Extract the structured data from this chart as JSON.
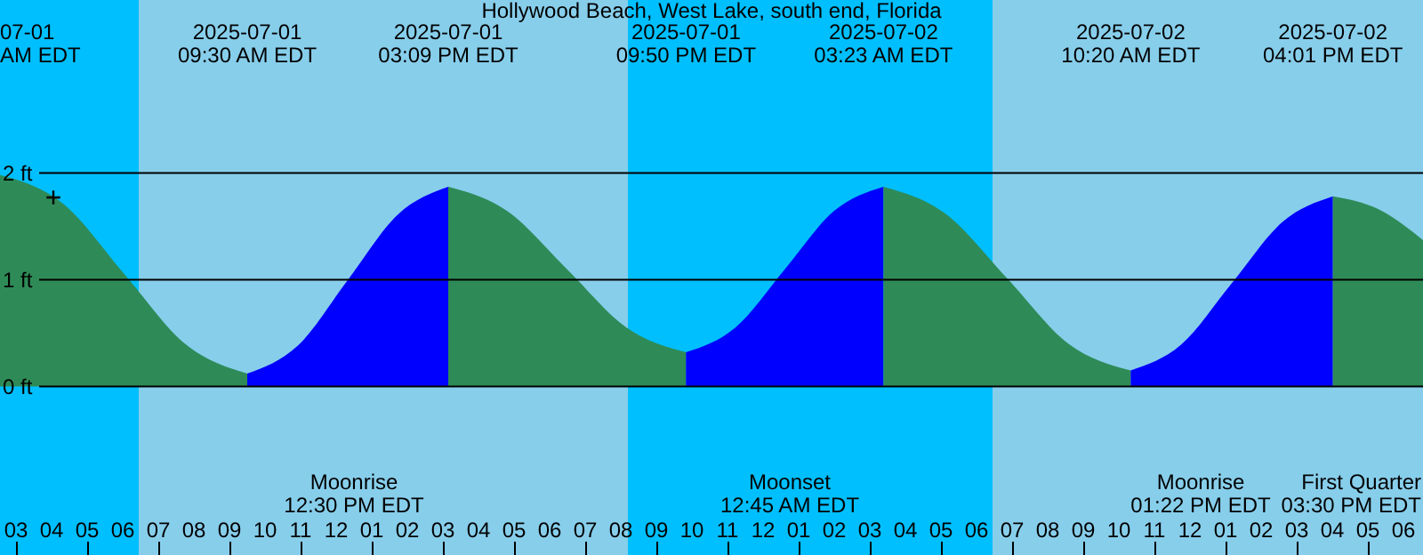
{
  "chart_data": {
    "type": "area",
    "title": "Hollywood Beach, West Lake, south end, Florida",
    "xlim": [
      "2025-07-01T02:33",
      "2025-07-02T18:33"
    ],
    "ylim": [
      -1.58,
      3.62
    ],
    "yticks": [
      {
        "value": 0,
        "label": "0 ft"
      },
      {
        "value": 1,
        "label": "1 ft"
      },
      {
        "value": 2,
        "label": "2 ft"
      }
    ],
    "xticks": [
      {
        "value": "2025-07-01T03:00",
        "label": "03"
      },
      {
        "value": "2025-07-01T04:00",
        "label": "04"
      },
      {
        "value": "2025-07-01T05:00",
        "label": "05"
      },
      {
        "value": "2025-07-01T06:00",
        "label": "06"
      },
      {
        "value": "2025-07-01T07:00",
        "label": "07"
      },
      {
        "value": "2025-07-01T08:00",
        "label": "08"
      },
      {
        "value": "2025-07-01T09:00",
        "label": "09"
      },
      {
        "value": "2025-07-01T10:00",
        "label": "10"
      },
      {
        "value": "2025-07-01T11:00",
        "label": "11"
      },
      {
        "value": "2025-07-01T12:00",
        "label": "12"
      },
      {
        "value": "2025-07-01T13:00",
        "label": "01"
      },
      {
        "value": "2025-07-01T14:00",
        "label": "02"
      },
      {
        "value": "2025-07-01T15:00",
        "label": "03"
      },
      {
        "value": "2025-07-01T16:00",
        "label": "04"
      },
      {
        "value": "2025-07-01T17:00",
        "label": "05"
      },
      {
        "value": "2025-07-01T18:00",
        "label": "06"
      },
      {
        "value": "2025-07-01T19:00",
        "label": "07"
      },
      {
        "value": "2025-07-01T20:00",
        "label": "08"
      },
      {
        "value": "2025-07-01T21:00",
        "label": "09"
      },
      {
        "value": "2025-07-01T22:00",
        "label": "10"
      },
      {
        "value": "2025-07-01T23:00",
        "label": "11"
      },
      {
        "value": "2025-07-02T00:00",
        "label": "12"
      },
      {
        "value": "2025-07-02T01:00",
        "label": "01"
      },
      {
        "value": "2025-07-02T02:00",
        "label": "02"
      },
      {
        "value": "2025-07-02T03:00",
        "label": "03"
      },
      {
        "value": "2025-07-02T04:00",
        "label": "04"
      },
      {
        "value": "2025-07-02T05:00",
        "label": "05"
      },
      {
        "value": "2025-07-02T06:00",
        "label": "06"
      },
      {
        "value": "2025-07-02T07:00",
        "label": "07"
      },
      {
        "value": "2025-07-02T08:00",
        "label": "08"
      },
      {
        "value": "2025-07-02T09:00",
        "label": "09"
      },
      {
        "value": "2025-07-02T10:00",
        "label": "10"
      },
      {
        "value": "2025-07-02T11:00",
        "label": "11"
      },
      {
        "value": "2025-07-02T12:00",
        "label": "12"
      },
      {
        "value": "2025-07-02T13:00",
        "label": "01"
      },
      {
        "value": "2025-07-02T14:00",
        "label": "02"
      },
      {
        "value": "2025-07-02T15:00",
        "label": "03"
      },
      {
        "value": "2025-07-02T16:00",
        "label": "04"
      },
      {
        "value": "2025-07-02T17:00",
        "label": "05"
      },
      {
        "value": "2025-07-02T18:00",
        "label": "06"
      }
    ],
    "grid": "y",
    "bands": [
      {
        "axis": "x",
        "from": "2025-07-01T02:33",
        "to": "2025-07-01T06:27",
        "color": "#00bfff"
      },
      {
        "axis": "x",
        "from": "2025-07-01T06:27",
        "to": "2025-07-01T20:12",
        "color": "#87ceeb"
      },
      {
        "axis": "x",
        "from": "2025-07-01T20:12",
        "to": "2025-07-02T06:27",
        "color": "#00bfff"
      },
      {
        "axis": "x",
        "from": "2025-07-02T06:27",
        "to": "2025-07-02T18:33",
        "color": "#87ceeb"
      }
    ],
    "series": [
      {
        "color": "#2e8b57",
        "x": [
          "2025-07-01T02:33",
          "2025-07-01T04:20",
          "2025-07-01T06:03",
          "2025-07-01T07:47",
          "2025-07-01T09:30"
        ],
        "values": [
          1.98,
          1.71,
          1.05,
          0.39,
          0.12
        ]
      },
      {
        "color": "#0000ff",
        "x": [
          "2025-07-01T09:30",
          "2025-07-01T10:55",
          "2025-07-01T12:20",
          "2025-07-01T13:44",
          "2025-07-01T15:09"
        ],
        "values": [
          0.12,
          0.38,
          1.0,
          1.61,
          1.87
        ]
      },
      {
        "color": "#2e8b57",
        "x": [
          "2025-07-01T15:09",
          "2025-07-01T16:49",
          "2025-07-01T18:29",
          "2025-07-01T20:10",
          "2025-07-01T21:50"
        ],
        "values": [
          1.87,
          1.64,
          1.1,
          0.55,
          0.32
        ]
      },
      {
        "color": "#0000ff",
        "x": [
          "2025-07-01T21:50",
          "2025-07-01T23:13",
          "2025-07-02T00:37",
          "2025-07-02T01:59",
          "2025-07-02T03:23"
        ],
        "values": [
          0.32,
          0.55,
          1.1,
          1.64,
          1.87
        ]
      },
      {
        "color": "#2e8b57",
        "x": [
          "2025-07-02T03:23",
          "2025-07-02T05:07",
          "2025-07-02T06:52",
          "2025-07-02T08:35",
          "2025-07-02T10:20"
        ],
        "values": [
          1.87,
          1.62,
          1.01,
          0.4,
          0.15
        ]
      },
      {
        "color": "#0000ff",
        "x": [
          "2025-07-02T10:20",
          "2025-07-02T11:45",
          "2025-07-02T13:11",
          "2025-07-02T14:36",
          "2025-07-02T16:01"
        ],
        "values": [
          0.15,
          0.39,
          0.97,
          1.54,
          1.78
        ]
      },
      {
        "color": "#2e8b57",
        "x": [
          "2025-07-02T16:01",
          "2025-07-02T17:18",
          "2025-07-02T18:33"
        ],
        "values": [
          1.78,
          1.66,
          1.37
        ]
      },
      {
        "type": "scatter",
        "marker": "cross",
        "color": "#000000",
        "x": [
          "2025-07-01T04:03"
        ],
        "values": [
          1.77
        ]
      }
    ],
    "annotations": [
      "07-01\nAM EDT",
      "2025-07-01\n09:30 AM EDT",
      "2025-07-01\n03:09 PM EDT",
      "2025-07-01\n09:50 PM EDT",
      "2025-07-02\n03:23 AM EDT",
      "2025-07-02\n10:20 AM EDT",
      "2025-07-02\n04:01 PM EDT",
      "Moonrise\n12:30 PM EDT",
      "Moonset\n12:45 AM EDT",
      "Moonrise\n01:22 PM EDT",
      "First Quarter\n03:30 PM EDT"
    ]
  }
}
